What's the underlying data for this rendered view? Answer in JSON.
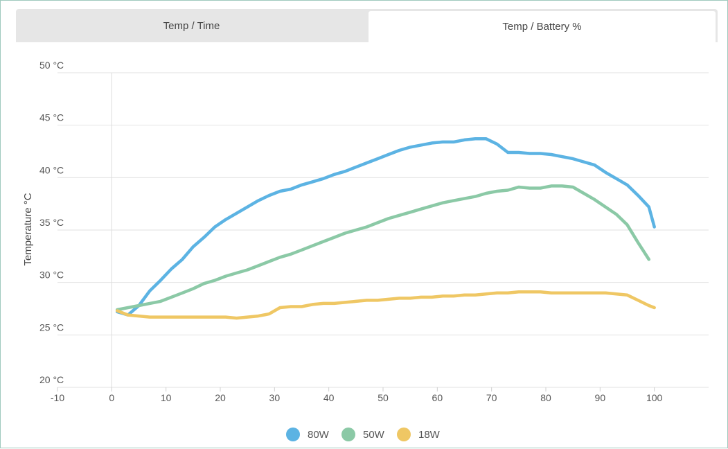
{
  "tabs": [
    {
      "label": "Temp / Time",
      "active": false
    },
    {
      "label": "Temp / Battery %",
      "active": true
    }
  ],
  "chart_data": {
    "type": "line",
    "title": "",
    "xlabel": "",
    "ylabel": "Temperature °C",
    "xlim": [
      -10,
      110
    ],
    "ylim": [
      20,
      50
    ],
    "x_ticks": [
      -10,
      0,
      10,
      20,
      30,
      40,
      50,
      60,
      70,
      80,
      90,
      100
    ],
    "y_ticks": [
      {
        "value": 20,
        "label": "20 °C"
      },
      {
        "value": 25,
        "label": "25 °C"
      },
      {
        "value": 30,
        "label": "30 °C"
      },
      {
        "value": 35,
        "label": "35 °C"
      },
      {
        "value": 40,
        "label": "40 °C"
      },
      {
        "value": 45,
        "label": "45 °C"
      },
      {
        "value": 50,
        "label": "50 °C"
      }
    ],
    "grid": true,
    "legend_position": "bottom-center",
    "series": [
      {
        "name": "80W",
        "color": "#5cb3e3",
        "x": [
          1,
          3,
          5,
          7,
          9,
          11,
          13,
          15,
          17,
          19,
          21,
          23,
          25,
          27,
          29,
          31,
          33,
          35,
          37,
          39,
          41,
          43,
          45,
          47,
          49,
          51,
          53,
          55,
          57,
          59,
          61,
          63,
          65,
          67,
          69,
          71,
          73,
          75,
          77,
          79,
          81,
          83,
          85,
          87,
          89,
          91,
          93,
          95,
          97,
          99,
          100
        ],
        "y": [
          27.2,
          26.9,
          27.8,
          29.2,
          30.2,
          31.3,
          32.2,
          33.4,
          34.3,
          35.3,
          36.0,
          36.6,
          37.2,
          37.8,
          38.3,
          38.7,
          38.9,
          39.3,
          39.6,
          39.9,
          40.3,
          40.6,
          41.0,
          41.4,
          41.8,
          42.2,
          42.6,
          42.9,
          43.1,
          43.3,
          43.4,
          43.4,
          43.6,
          43.7,
          43.7,
          43.2,
          42.4,
          42.4,
          42.3,
          42.3,
          42.2,
          42.0,
          41.8,
          41.5,
          41.2,
          40.5,
          39.9,
          39.3,
          38.3,
          37.2,
          35.3
        ]
      },
      {
        "name": "50W",
        "color": "#8bc9a6",
        "x": [
          1,
          3,
          5,
          7,
          9,
          11,
          13,
          15,
          17,
          19,
          21,
          23,
          25,
          27,
          29,
          31,
          33,
          35,
          37,
          39,
          41,
          43,
          45,
          47,
          49,
          51,
          53,
          55,
          57,
          59,
          61,
          63,
          65,
          67,
          69,
          71,
          73,
          75,
          77,
          79,
          81,
          83,
          85,
          87,
          89,
          91,
          93,
          95,
          97,
          99
        ],
        "y": [
          27.4,
          27.6,
          27.8,
          28.0,
          28.2,
          28.6,
          29.0,
          29.4,
          29.9,
          30.2,
          30.6,
          30.9,
          31.2,
          31.6,
          32.0,
          32.4,
          32.7,
          33.1,
          33.5,
          33.9,
          34.3,
          34.7,
          35.0,
          35.3,
          35.7,
          36.1,
          36.4,
          36.7,
          37.0,
          37.3,
          37.6,
          37.8,
          38.0,
          38.2,
          38.5,
          38.7,
          38.8,
          39.1,
          39.0,
          39.0,
          39.2,
          39.2,
          39.1,
          38.5,
          37.9,
          37.2,
          36.5,
          35.5,
          33.8,
          32.2
        ]
      },
      {
        "name": "18W",
        "color": "#efc764",
        "x": [
          1,
          3,
          5,
          7,
          9,
          11,
          13,
          15,
          17,
          19,
          21,
          23,
          25,
          27,
          29,
          31,
          33,
          35,
          37,
          39,
          41,
          43,
          45,
          47,
          49,
          51,
          53,
          55,
          57,
          59,
          61,
          63,
          65,
          67,
          69,
          71,
          73,
          75,
          77,
          79,
          81,
          83,
          85,
          87,
          89,
          91,
          93,
          95,
          97,
          99,
          100
        ],
        "y": [
          27.3,
          26.9,
          26.8,
          26.7,
          26.7,
          26.7,
          26.7,
          26.7,
          26.7,
          26.7,
          26.7,
          26.6,
          26.7,
          26.8,
          27.0,
          27.6,
          27.7,
          27.7,
          27.9,
          28.0,
          28.0,
          28.1,
          28.2,
          28.3,
          28.3,
          28.4,
          28.5,
          28.5,
          28.6,
          28.6,
          28.7,
          28.7,
          28.8,
          28.8,
          28.9,
          29.0,
          29.0,
          29.1,
          29.1,
          29.1,
          29.0,
          29.0,
          29.0,
          29.0,
          29.0,
          29.0,
          28.9,
          28.8,
          28.3,
          27.8,
          27.6
        ]
      }
    ]
  }
}
